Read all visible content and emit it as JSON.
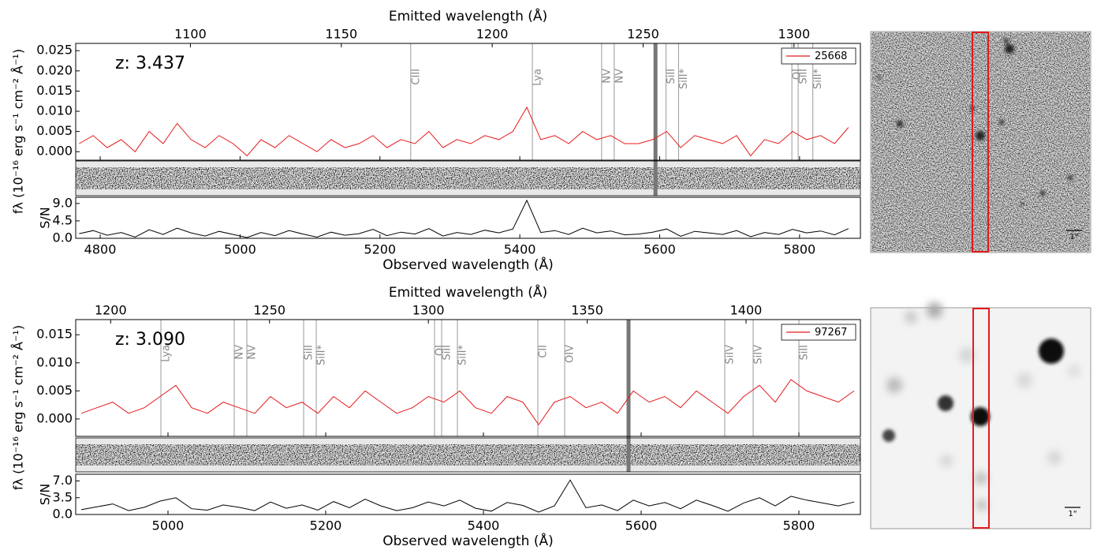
{
  "chart_data": [
    {
      "type": "line",
      "annotation": "z: 3.437",
      "x_label": "Observed wavelength (Å)",
      "x2_label": "Emitted wavelength (Å)",
      "y_label": "fλ (10⁻¹⁶ erg s⁻¹ cm⁻² Å⁻¹)",
      "xlim": [
        4765,
        5887
      ],
      "xticks": [
        4800,
        5000,
        5200,
        5400,
        5600,
        5800
      ],
      "x2lim": [
        1062,
        1322
      ],
      "x2ticks": [
        1100,
        1150,
        1200,
        1250,
        1300
      ],
      "ylim": [
        -0.0021,
        0.0268
      ],
      "yticks": [
        {
          "value": 0,
          "label": "0.000"
        },
        {
          "value": 0.005,
          "label": "0.005"
        },
        {
          "value": 0.01,
          "label": "0.010"
        },
        {
          "value": 0.015,
          "label": "0.015"
        },
        {
          "value": 0.02,
          "label": "0.020"
        },
        {
          "value": 0.025,
          "label": "0.025"
        }
      ],
      "x": [
        4770,
        4790,
        4810,
        4830,
        4850,
        4870,
        4890,
        4910,
        4930,
        4950,
        4970,
        4990,
        5010,
        5030,
        5050,
        5070,
        5090,
        5110,
        5130,
        5150,
        5170,
        5190,
        5210,
        5230,
        5250,
        5270,
        5290,
        5310,
        5330,
        5350,
        5370,
        5390,
        5410,
        5430,
        5450,
        5470,
        5490,
        5510,
        5530,
        5550,
        5570,
        5590,
        5610,
        5630,
        5650,
        5670,
        5690,
        5710,
        5730,
        5750,
        5770,
        5790,
        5810,
        5830,
        5850,
        5870
      ],
      "series": [
        {
          "name": "25668",
          "color": "#e41a1c",
          "values": [
            0.002,
            0.004,
            0.001,
            0.003,
            0.0,
            0.005,
            0.002,
            0.007,
            0.003,
            0.001,
            0.004,
            0.002,
            -0.001,
            0.003,
            0.001,
            0.004,
            0.002,
            0.0,
            0.003,
            0.001,
            0.002,
            0.004,
            0.001,
            0.003,
            0.002,
            0.005,
            0.001,
            0.003,
            0.002,
            0.004,
            0.003,
            0.005,
            0.011,
            0.003,
            0.004,
            0.002,
            0.005,
            0.003,
            0.004,
            0.002,
            0.002,
            0.003,
            0.005,
            0.001,
            0.004,
            0.003,
            0.002,
            0.004,
            -0.001,
            0.003,
            0.002,
            0.005,
            0.003,
            0.004,
            0.002,
            0.006
          ]
        }
      ],
      "legend": "upper right",
      "sn": {
        "label": "S/N",
        "color": "#000000",
        "ylim": [
          0,
          10.6
        ],
        "yticks": [
          {
            "value": 0,
            "label": "0.0"
          },
          {
            "value": 4.5,
            "label": "4.5"
          },
          {
            "value": 9,
            "label": "9.0"
          }
        ],
        "values": [
          1.2,
          2.0,
          0.8,
          1.5,
          0.3,
          2.2,
          1.0,
          2.6,
          1.4,
          0.6,
          1.8,
          1.0,
          0.2,
          1.5,
          0.7,
          2.0,
          1.1,
          0.3,
          1.6,
          0.8,
          1.2,
          2.3,
          0.7,
          1.6,
          1.1,
          2.5,
          0.6,
          1.5,
          1.0,
          2.1,
          1.4,
          2.4,
          9.8,
          1.5,
          2.0,
          1.0,
          2.6,
          1.4,
          1.9,
          0.9,
          1.1,
          1.6,
          2.4,
          0.5,
          1.8,
          1.4,
          1.0,
          2.0,
          0.4,
          1.5,
          1.0,
          2.3,
          1.4,
          1.9,
          0.9,
          2.5
        ]
      },
      "sky_line": 5594,
      "lines": [
        {
          "label": "CIII",
          "x": 5244
        },
        {
          "label": "Lya",
          "x": 5418
        },
        {
          "label": "NV",
          "x": 5517
        },
        {
          "label": "NV",
          "x": 5535
        },
        {
          "label": "SiII",
          "x": 5609
        },
        {
          "label": "SiII*",
          "x": 5627
        },
        {
          "label": "OI",
          "x": 5789
        },
        {
          "label": "SiII",
          "x": 5798
        },
        {
          "label": "SiII*",
          "x": 5819
        }
      ],
      "scale_label": "1\""
    },
    {
      "type": "line",
      "annotation": "z: 3.090",
      "x_label": "Observed wavelength (Å)",
      "x2_label": "Emitted wavelength (Å)",
      "y_label": "fλ (10⁻¹⁶ erg s⁻¹ cm⁻² Å⁻¹)",
      "xlim": [
        4883,
        5878
      ],
      "xticks": [
        5000,
        5200,
        5400,
        5600,
        5800
      ],
      "x2lim": [
        1189,
        1436
      ],
      "x2ticks": [
        1200,
        1250,
        1300,
        1350,
        1400
      ],
      "ylim": [
        -0.0031,
        0.0177
      ],
      "yticks": [
        {
          "value": 0,
          "label": "0.000"
        },
        {
          "value": 0.005,
          "label": "0.005"
        },
        {
          "value": 0.01,
          "label": "0.010"
        },
        {
          "value": 0.015,
          "label": "0.015"
        }
      ],
      "x": [
        4890,
        4910,
        4930,
        4950,
        4970,
        4990,
        5010,
        5030,
        5050,
        5070,
        5090,
        5110,
        5130,
        5150,
        5170,
        5190,
        5210,
        5230,
        5250,
        5270,
        5290,
        5310,
        5330,
        5350,
        5370,
        5390,
        5410,
        5430,
        5450,
        5470,
        5490,
        5510,
        5530,
        5550,
        5570,
        5590,
        5610,
        5630,
        5650,
        5670,
        5690,
        5710,
        5730,
        5750,
        5770,
        5790,
        5810,
        5830,
        5850,
        5870
      ],
      "series": [
        {
          "name": "97267",
          "color": "#e41a1c",
          "values": [
            0.001,
            0.002,
            0.003,
            0.001,
            0.002,
            0.004,
            0.006,
            0.002,
            0.001,
            0.003,
            0.002,
            0.001,
            0.004,
            0.002,
            0.003,
            0.001,
            0.004,
            0.002,
            0.005,
            0.003,
            0.001,
            0.002,
            0.004,
            0.003,
            0.005,
            0.002,
            0.001,
            0.004,
            0.003,
            -0.001,
            0.003,
            0.004,
            0.002,
            0.003,
            0.001,
            0.005,
            0.003,
            0.004,
            0.002,
            0.005,
            0.003,
            0.001,
            0.004,
            0.006,
            0.003,
            0.007,
            0.005,
            0.004,
            0.003,
            0.005
          ]
        }
      ],
      "legend": "upper right",
      "sn": {
        "label": "S/N",
        "color": "#000000",
        "ylim": [
          0,
          8.4
        ],
        "yticks": [
          {
            "value": 0,
            "label": "0.0"
          },
          {
            "value": 3.5,
            "label": "3.5"
          },
          {
            "value": 7,
            "label": "7.0"
          }
        ],
        "values": [
          1.0,
          1.6,
          2.2,
          0.8,
          1.5,
          2.8,
          3.5,
          1.2,
          0.9,
          2.0,
          1.5,
          0.8,
          2.6,
          1.3,
          2.0,
          0.9,
          2.7,
          1.4,
          3.2,
          1.8,
          0.8,
          1.4,
          2.6,
          1.8,
          3.0,
          1.3,
          0.7,
          2.5,
          1.9,
          0.5,
          1.8,
          7.2,
          1.4,
          2.0,
          0.8,
          3.0,
          1.8,
          2.5,
          1.2,
          3.0,
          1.9,
          0.7,
          2.4,
          3.5,
          1.8,
          3.8,
          3.0,
          2.4,
          1.8,
          2.6
        ]
      },
      "sky_line": 5584,
      "lines": [
        {
          "label": "Lya",
          "x": 4991
        },
        {
          "label": "NV",
          "x": 5084
        },
        {
          "label": "NV",
          "x": 5100
        },
        {
          "label": "SiII",
          "x": 5172
        },
        {
          "label": "SiII*",
          "x": 5188
        },
        {
          "label": "OI",
          "x": 5338
        },
        {
          "label": "SiII",
          "x": 5347
        },
        {
          "label": "SiII*",
          "x": 5367
        },
        {
          "label": "CII",
          "x": 5469
        },
        {
          "label": "OIV",
          "x": 5503
        },
        {
          "label": "SiIV",
          "x": 5706
        },
        {
          "label": "SiIV",
          "x": 5742
        },
        {
          "label": "SiII",
          "x": 5800
        }
      ],
      "scale_label": "1\""
    }
  ]
}
